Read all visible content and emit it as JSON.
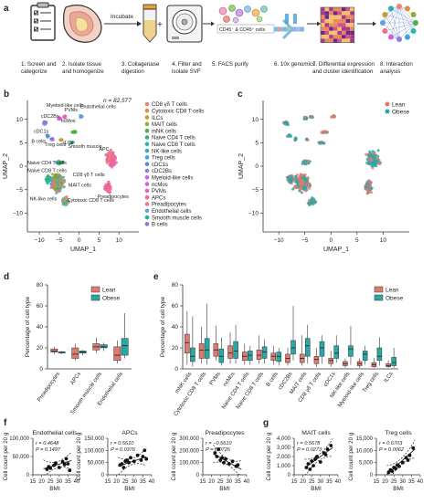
{
  "panels": {
    "a": "a",
    "b": "b",
    "c": "c",
    "d": "d",
    "e": "e",
    "f": "f",
    "g": "g"
  },
  "workflow": {
    "incubate": "Incubate",
    "facs_gate": "CD45⁻ & CD45⁺ cells",
    "steps": [
      [
        "1. Screen and",
        "categorize"
      ],
      [
        "2. Isolate tissue",
        "and homogenize"
      ],
      [
        "3. Collagenase",
        "digestion"
      ],
      [
        "4. Filter and",
        "isolate SVF"
      ],
      [
        "5. FACS purify"
      ],
      [
        "6. 10x genomics"
      ],
      [
        "7. Differential expression",
        "and cluster identification"
      ],
      [
        "8. Interaction",
        "analysis"
      ]
    ]
  },
  "umap_b": {
    "n_label": "n = 82,577",
    "xlabel": "UMAP_1",
    "ylabel": "UMAP_2",
    "xticks": [
      "−10",
      "−5",
      "0",
      "5",
      "10"
    ],
    "yticks": [
      "10",
      "5",
      "0",
      "−5",
      "−10"
    ],
    "cluster_labels": [
      "Myeloid-like cells",
      "cDC2Bs",
      "PVMs",
      "Endothelial cells",
      "ncMos",
      "cDC1s",
      "B cells",
      "ILCs",
      "Treg cells",
      "Smooth muscle",
      "Naive CD4 T cells",
      "Naive CD8 T cells",
      "APC",
      "Preadipocytes",
      "CD8 γδ T cells",
      "MAIT cells",
      "Cytotoxic CD8 T cells",
      "NK-like cells"
    ],
    "legend": [
      {
        "label": "CD8 γδ T cells",
        "color": "#e8827a"
      },
      {
        "label": "Cytotoxic CD8 T cells",
        "color": "#d98f3f"
      },
      {
        "label": "ILCs",
        "color": "#bda030"
      },
      {
        "label": "MAIT cells",
        "color": "#8fae2c"
      },
      {
        "label": "mNK cells",
        "color": "#4cb04a"
      },
      {
        "label": "Naive CD4 T cells",
        "color": "#33b07a"
      },
      {
        "label": "Naive CD8 T cells",
        "color": "#2fb5a8"
      },
      {
        "label": "NK-like cells",
        "color": "#2ab3c8"
      },
      {
        "label": "Treg cells",
        "color": "#36a6dc"
      },
      {
        "label": "cDC1s",
        "color": "#4d8fe0"
      },
      {
        "label": "cDC2Bs",
        "color": "#8a7fe3"
      },
      {
        "label": "Myeloid-like cells",
        "color": "#b273df"
      },
      {
        "label": "ncMos",
        "color": "#d45fd0"
      },
      {
        "label": "PVMs",
        "color": "#ea5fb2"
      },
      {
        "label": "APCs",
        "color": "#f06c93"
      },
      {
        "label": "Preadipocytes",
        "color": "#f07a7a"
      },
      {
        "label": "Endothelial cells",
        "color": "#5ea0e6"
      },
      {
        "label": "Smooth muscle cells",
        "color": "#2ab0a0"
      },
      {
        "label": "B cells",
        "color": "#9a6ddf"
      }
    ]
  },
  "umap_c": {
    "xlabel": "UMAP_1",
    "ylabel": "UMAP_2",
    "xticks": [
      "−10",
      "−5",
      "0",
      "5",
      "10"
    ],
    "yticks": [
      "10",
      "5",
      "0",
      "−5",
      "−10"
    ],
    "legend": [
      {
        "label": "Lean",
        "color": "#e07a6e"
      },
      {
        "label": "Obese",
        "color": "#2aa8a4"
      }
    ]
  },
  "colors": {
    "lean": "#e07a6e",
    "obese": "#2aa8a4"
  },
  "chart_data": [
    {
      "panel": "d",
      "type": "box",
      "ylabel": "Percentage of cell type",
      "ylim": [
        0,
        80
      ],
      "yticks": [
        "0",
        "20",
        "40",
        "60",
        "80"
      ],
      "legend": [
        "Lean",
        "Obese"
      ],
      "categories": [
        "Preadipocytes",
        "APCs",
        "Smooth muscle cells",
        "Endothelial cells"
      ],
      "series": [
        {
          "name": "Lean",
          "boxes": [
            [
              14,
              16,
              17,
              19,
              21
            ],
            [
              8,
              10,
              14,
              20,
              24
            ],
            [
              15,
              18,
              21,
              24,
              30
            ],
            [
              5,
              8,
              13,
              21,
              27
            ]
          ]
        },
        {
          "name": "Obese",
          "boxes": [
            [
              14,
              15,
              16,
              16,
              17
            ],
            [
              13,
              15,
              16,
              17,
              18
            ],
            [
              17,
              20,
              21,
              23,
              25
            ],
            [
              10,
              13,
              22,
              29,
              53
            ]
          ]
        }
      ]
    },
    {
      "panel": "e",
      "type": "box",
      "ylabel": "Percentage of cell type",
      "ylim": [
        0,
        80
      ],
      "yticks": [
        "0",
        "20",
        "40",
        "60",
        "80"
      ],
      "legend": [
        "Lean",
        "Obese"
      ],
      "categories": [
        "mNK cells",
        "Cytotoxic CD8 T cells",
        "PVMs",
        "ncMos",
        "Naive CD4 T cells",
        "Naive CD8 T cells",
        "B cells",
        "cDC2Bs",
        "MAIT cells",
        "CD8 γδ T cells",
        "cDC1s",
        "NK-like cells",
        "Myeloid-like cells",
        "Treg cells",
        "ILCs"
      ],
      "series": [
        {
          "name": "Lean",
          "boxes": [
            [
              4,
              15,
              25,
              33,
              55
            ],
            [
              5,
              10,
              18,
              24,
              40
            ],
            [
              8,
              12,
              18,
              24,
              41
            ],
            [
              5,
              10,
              15,
              22,
              35
            ],
            [
              4,
              8,
              12,
              16,
              24
            ],
            [
              5,
              9,
              13,
              18,
              32
            ],
            [
              4,
              8,
              12,
              15,
              22
            ],
            [
              3,
              6,
              10,
              14,
              20
            ],
            [
              3,
              6,
              10,
              14,
              32
            ],
            [
              2,
              5,
              9,
              12,
              20
            ],
            [
              2,
              5,
              8,
              10,
              17
            ],
            [
              1,
              3,
              5,
              7,
              10
            ],
            [
              1,
              3,
              5,
              7,
              10
            ],
            [
              1,
              2,
              4,
              6,
              10
            ],
            [
              1,
              2,
              3,
              5,
              8
            ]
          ]
        },
        {
          "name": "Obese",
          "boxes": [
            [
              2,
              7,
              12,
              20,
              50
            ],
            [
              4,
              10,
              18,
              29,
              62
            ],
            [
              3,
              6,
              12,
              19,
              30
            ],
            [
              5,
              10,
              17,
              26,
              42
            ],
            [
              4,
              8,
              13,
              17,
              22
            ],
            [
              5,
              10,
              16,
              21,
              28
            ],
            [
              3,
              7,
              12,
              16,
              20
            ],
            [
              8,
              14,
              20,
              27,
              60
            ],
            [
              5,
              12,
              22,
              29,
              42
            ],
            [
              5,
              12,
              20,
              26,
              32
            ],
            [
              6,
              10,
              15,
              22,
              32
            ],
            [
              4,
              12,
              19,
              22,
              41
            ],
            [
              4,
              8,
              14,
              17,
              22
            ],
            [
              3,
              8,
              12,
              20,
              30
            ],
            [
              1,
              3,
              6,
              11,
              20
            ]
          ]
        }
      ]
    },
    {
      "panel": "f1",
      "type": "scatter",
      "title": "Endothelial cells",
      "xlabel": "BMI",
      "ylabel": "Cell count per 20 g",
      "xlim": [
        15,
        40
      ],
      "ylim": [
        0,
        100000
      ],
      "xticks": [
        "15",
        "20",
        "25",
        "30",
        "35",
        "40"
      ],
      "yticks": [
        "0",
        "50,000",
        "100,000"
      ],
      "stats": [
        "r = 0.4648",
        "P = 0.1497"
      ],
      "points": [
        [
          23,
          15000
        ],
        [
          24,
          22000
        ],
        [
          25,
          18000
        ],
        [
          27,
          26000
        ],
        [
          28,
          32000
        ],
        [
          30,
          20000
        ],
        [
          32,
          36000
        ],
        [
          33,
          28000
        ],
        [
          34,
          44000
        ],
        [
          35,
          30000
        ],
        [
          36,
          12000
        ]
      ],
      "fit": {
        "slope": 1400,
        "intercept": -13000
      }
    },
    {
      "panel": "f2",
      "type": "scatter",
      "title": "APCs",
      "xlabel": "BMI",
      "ylabel": "Cell count per 20 g",
      "xlim": [
        15,
        40
      ],
      "ylim": [
        0,
        150000
      ],
      "xticks": [
        "15",
        "20",
        "25",
        "30",
        "35",
        "40"
      ],
      "yticks": [
        "0",
        "50,000",
        "100,000",
        "150,000"
      ],
      "stats": [
        "r = 0.5610",
        "P = 0.0376"
      ],
      "points": [
        [
          22,
          40000
        ],
        [
          23,
          45000
        ],
        [
          24,
          30000
        ],
        [
          25,
          55000
        ],
        [
          26,
          60000
        ],
        [
          27,
          50000
        ],
        [
          28,
          70000
        ],
        [
          30,
          55000
        ],
        [
          32,
          80000
        ],
        [
          34,
          60000
        ],
        [
          35,
          75000
        ],
        [
          36,
          100000
        ],
        [
          37,
          65000
        ]
      ],
      "fit": {
        "slope": 2400,
        "intercept": -15000
      }
    },
    {
      "panel": "f3",
      "type": "scatter",
      "title": "Preadipocytes",
      "xlabel": "BMI",
      "ylabel": "Cell count per 20 g",
      "xlim": [
        15,
        40
      ],
      "ylim": [
        0,
        300000
      ],
      "xticks": [
        "15",
        "20",
        "25",
        "30",
        "35",
        "40"
      ],
      "yticks": [
        "0",
        "100,000",
        "200,000",
        "300,000"
      ],
      "stats": [
        "r = −0.5610",
        "P = 0.0726"
      ],
      "points": [
        [
          22,
          180000
        ],
        [
          23,
          150000
        ],
        [
          24,
          210000
        ],
        [
          25,
          120000
        ],
        [
          26,
          140000
        ],
        [
          27,
          100000
        ],
        [
          28,
          130000
        ],
        [
          30,
          90000
        ],
        [
          32,
          110000
        ],
        [
          34,
          70000
        ],
        [
          35,
          80000
        ]
      ],
      "fit": {
        "slope": -8000,
        "intercept": 340000
      }
    },
    {
      "panel": "g1",
      "type": "scatter",
      "title": "MAIT cells",
      "xlabel": "BMI",
      "ylabel": "Cell count per 20 g",
      "xlim": [
        15,
        40
      ],
      "ylim": [
        0,
        4000
      ],
      "xticks": [
        "15",
        "20",
        "25",
        "30",
        "35",
        "40"
      ],
      "yticks": [
        "0",
        "1,000",
        "2,000",
        "3,000",
        "4,000"
      ],
      "stats": [
        "r = 0.5678",
        "P = 0.0273"
      ],
      "points": [
        [
          22,
          800
        ],
        [
          23,
          1200
        ],
        [
          24,
          600
        ],
        [
          25,
          1500
        ],
        [
          26,
          1000
        ],
        [
          27,
          1700
        ],
        [
          28,
          2000
        ],
        [
          30,
          1400
        ],
        [
          32,
          2400
        ],
        [
          33,
          2200
        ],
        [
          34,
          2800
        ],
        [
          36,
          3200
        ]
      ],
      "fit": {
        "slope": 140,
        "intercept": -2200
      }
    },
    {
      "panel": "g2",
      "type": "scatter",
      "title": "Treg cells",
      "xlabel": "BMI",
      "ylabel": "Cell count per 20 g",
      "xlim": [
        15,
        40
      ],
      "ylim": [
        0,
        15000
      ],
      "xticks": [
        "15",
        "20",
        "25",
        "30",
        "35",
        "40"
      ],
      "yticks": [
        "0",
        "5,000",
        "10,000",
        "15,000"
      ],
      "stats": [
        "r = 0.6703",
        "P = 0.0062"
      ],
      "points": [
        [
          22,
          1000
        ],
        [
          23,
          2000
        ],
        [
          24,
          1500
        ],
        [
          25,
          3000
        ],
        [
          26,
          2500
        ],
        [
          27,
          4000
        ],
        [
          28,
          3500
        ],
        [
          30,
          5000
        ],
        [
          32,
          7000
        ],
        [
          33,
          6000
        ],
        [
          34,
          8000
        ],
        [
          36,
          11000
        ]
      ],
      "fit": {
        "slope": 650,
        "intercept": -13500
      }
    }
  ]
}
